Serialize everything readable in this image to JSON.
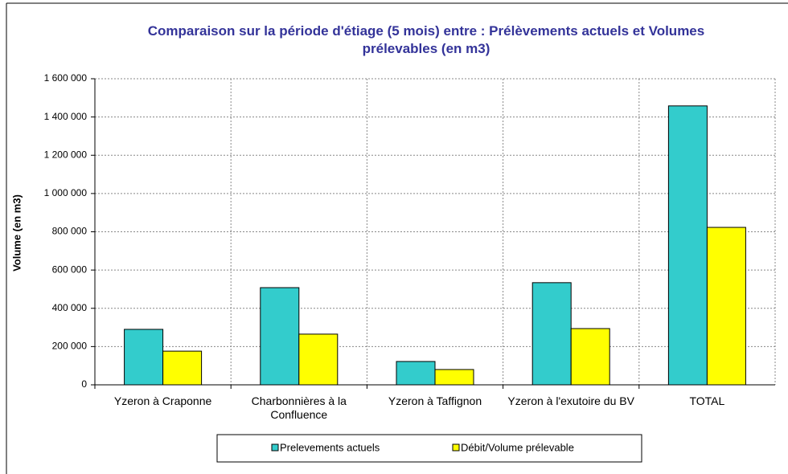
{
  "chart_data": {
    "type": "bar",
    "title": "Comparaison sur la période d'étiage (5 mois) entre :  Prélèvements actuels et Volumes prélevables (en m3)",
    "ylabel": "Volume (en m3)",
    "categories": [
      "Yzeron à Craponne",
      "Charbonnières à la Confluence",
      "Yzeron à Taffignon",
      "Yzeron à l'exutoire du BV",
      "TOTAL"
    ],
    "series": [
      {
        "name": "Prelevements actuels",
        "color": "#33cccc",
        "values": [
          290000,
          508000,
          122000,
          534000,
          1458000
        ]
      },
      {
        "name": "Débit/Volume prélevable",
        "color": "#ffff00",
        "values": [
          176000,
          265000,
          80000,
          294000,
          823000
        ]
      }
    ],
    "ylim": [
      0,
      1600000
    ],
    "yticks": [
      0,
      {
        "value": 200000,
        "label": "200 000"
      },
      {
        "value": 400000,
        "label": "400 000"
      },
      {
        "value": 600000,
        "label": "600 000"
      },
      {
        "value": 800000,
        "label": "800 000"
      },
      {
        "value": 1000000,
        "label": "1 000 000"
      },
      {
        "value": 1200000,
        "label": "1 200 000"
      },
      {
        "value": 1400000,
        "label": "1 400 000"
      },
      {
        "value": 1600000,
        "label": "1 600 000"
      }
    ],
    "grid": true,
    "legend": "bottom"
  }
}
